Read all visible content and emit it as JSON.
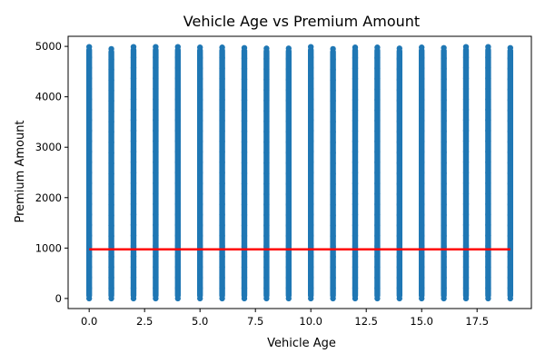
{
  "chart_data": {
    "type": "scatter",
    "title": "Vehicle Age vs Premium Amount",
    "xlabel": "Vehicle Age",
    "ylabel": "Premium Amount",
    "xlim": [
      -0.95,
      19.95
    ],
    "ylim": [
      -200,
      5200
    ],
    "x_ticks": [
      0,
      2.5,
      5,
      7.5,
      10,
      12.5,
      15,
      17.5
    ],
    "x_tick_labels": [
      "0.0",
      "2.5",
      "5.0",
      "7.5",
      "10.0",
      "12.5",
      "15.0",
      "17.5"
    ],
    "y_ticks": [
      0,
      1000,
      2000,
      3000,
      4000,
      5000
    ],
    "y_tick_labels": [
      "0",
      "1000",
      "2000",
      "3000",
      "4000",
      "5000"
    ],
    "grid": false,
    "legend": "none",
    "scatter_color": "#1f77b4",
    "series": [
      {
        "marker": "point",
        "x": [
          0,
          1,
          2,
          3,
          4,
          5,
          6,
          7,
          8,
          9,
          10,
          11,
          12,
          13,
          14,
          15,
          16,
          17,
          18,
          19
        ],
        "y_min": [
          0,
          0,
          0,
          0,
          0,
          0,
          0,
          0,
          0,
          0,
          0,
          0,
          0,
          0,
          0,
          0,
          0,
          0,
          0,
          0
        ],
        "y_max": [
          4990,
          4950,
          4990,
          4990,
          4990,
          4980,
          4980,
          4970,
          4960,
          4960,
          4990,
          4950,
          4980,
          4980,
          4960,
          4980,
          4970,
          4990,
          4990,
          4970
        ]
      },
      {
        "marker": "line",
        "color": "#ff0000",
        "x": [
          0,
          19
        ],
        "y": [
          975,
          975
        ]
      }
    ]
  }
}
